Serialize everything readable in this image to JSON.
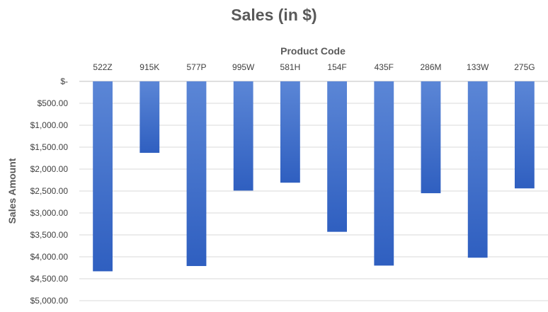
{
  "chart_data": {
    "type": "bar",
    "orientation": "vertical",
    "y_axis_reversed": true,
    "x_axis_position": "top",
    "title": "Sales (in $)",
    "xlabel": "Product Code",
    "ylabel": "Sales Amount",
    "categories": [
      "522Z",
      "915K",
      "577P",
      "995W",
      "581H",
      "154F",
      "435F",
      "286M",
      "133W",
      "275G"
    ],
    "values": [
      4330,
      1630,
      4210,
      2490,
      2310,
      3430,
      4200,
      2550,
      4020,
      2440
    ],
    "ylim": [
      0,
      5000
    ],
    "y_ticks": [
      0,
      500,
      1000,
      1500,
      2000,
      2500,
      3000,
      3500,
      4000,
      4500,
      5000
    ],
    "y_tick_labels": [
      "$-",
      "$500.00",
      "$1,000.00",
      "$1,500.00",
      "$2,000.00",
      "$2,500.00",
      "$3,000.00",
      "$3,500.00",
      "$4,000.00",
      "$4,500.00",
      "$5,000.00"
    ],
    "grid": true,
    "legend": "none",
    "bar_color_top": "#5b86d6",
    "bar_color_bottom": "#2f5fc0"
  }
}
